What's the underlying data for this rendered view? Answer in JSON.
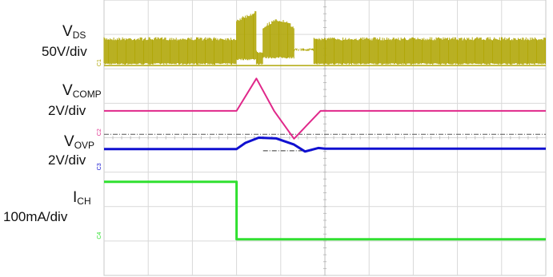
{
  "chart_data": {
    "type": "line",
    "title": "",
    "xlabel": "",
    "ylabel": "",
    "grid": true,
    "grid_divisions": {
      "x": 10,
      "y": 8
    },
    "x_range_div": [
      0,
      10
    ],
    "channels": [
      {
        "id": "ch1",
        "tag": "C1",
        "symbol": "V",
        "subscript": "DS",
        "scale": "50V/div",
        "color": "#b1a709",
        "baseline_div": 1.88,
        "shape": "switching envelope",
        "segments": [
          {
            "x": [
              0.0,
              3.0
            ],
            "low_div": 1.88,
            "high_div": 1.08
          },
          {
            "x": [
              3.0,
              3.45
            ],
            "low_div": 1.75,
            "high_div": 0.35
          },
          {
            "x": [
              3.45,
              3.6
            ],
            "low_div": 1.88,
            "high_div": 1.45
          },
          {
            "x": [
              3.6,
              4.3
            ],
            "low_div": 1.7,
            "high_div": 0.5
          },
          {
            "x": [
              4.3,
              4.75
            ],
            "low_div": 1.45,
            "high_div": 1.4
          },
          {
            "x": [
              4.75,
              10.0
            ],
            "low_div": 1.88,
            "high_div": 1.08
          }
        ]
      },
      {
        "id": "ch2",
        "tag": "C2",
        "symbol": "V",
        "subscript": "COMP",
        "scale": "2V/div",
        "color": "#e0288a",
        "baseline_div": 3.9,
        "points": [
          [
            0.0,
            3.22
          ],
          [
            3.0,
            3.22
          ],
          [
            3.45,
            2.28
          ],
          [
            3.85,
            3.22
          ],
          [
            4.3,
            4.03
          ],
          [
            4.9,
            3.22
          ],
          [
            10.0,
            3.22
          ]
        ]
      },
      {
        "id": "ch3",
        "tag": "C3",
        "symbol": "V",
        "subscript": "OVP",
        "scale": "2V/div",
        "color": "#1010d0",
        "baseline_div": 4.9,
        "points": [
          [
            0.0,
            4.33
          ],
          [
            3.0,
            4.33
          ],
          [
            3.2,
            4.15
          ],
          [
            3.5,
            4.0
          ],
          [
            3.9,
            4.02
          ],
          [
            4.3,
            4.2
          ],
          [
            4.55,
            4.4
          ],
          [
            4.85,
            4.3
          ],
          [
            5.0,
            4.32
          ],
          [
            10.0,
            4.32
          ]
        ]
      },
      {
        "id": "ch4",
        "tag": "C4",
        "symbol": "I",
        "subscript": "CH",
        "scale": "100mA/div",
        "color": "#30e030",
        "baseline_div": 6.9,
        "points": [
          [
            0.0,
            5.28
          ],
          [
            3.0,
            5.28
          ],
          [
            3.0,
            6.95
          ],
          [
            10.0,
            6.95
          ]
        ]
      }
    ],
    "reference_lines": [
      {
        "y_div": 3.9,
        "style": "dash-dot",
        "color": "#555555"
      },
      {
        "y_div": 4.38,
        "x": [
          3.6,
          4.7
        ],
        "style": "dash-dot",
        "color": "#333333"
      }
    ]
  }
}
